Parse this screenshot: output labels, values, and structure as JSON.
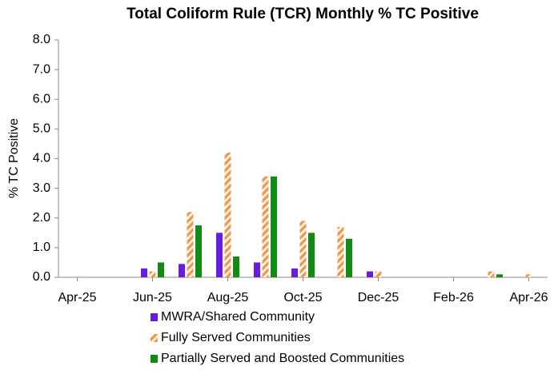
{
  "chart_data": {
    "type": "bar",
    "title": "Total Coliform Rule (TCR) Monthly % TC Positive",
    "y_label": "% TC Positive",
    "categories": [
      "Apr-25",
      null,
      "Jun-25",
      null,
      "Aug-25",
      null,
      "Oct-25",
      null,
      "Dec-25",
      null,
      "Feb-26",
      null,
      "Apr-26"
    ],
    "series": [
      {
        "name": "MWRA/Shared Community",
        "color": "#6a1be0",
        "pattern": "solid",
        "values": [
          null,
          null,
          0.3,
          0.45,
          1.5,
          0.5,
          0.3,
          null,
          0.2,
          null,
          null,
          null,
          null
        ]
      },
      {
        "name": "Fully Served Communities",
        "color": "#f79646",
        "pattern": "hatched",
        "values": [
          null,
          null,
          0.2,
          2.2,
          4.2,
          3.4,
          1.9,
          1.7,
          0.2,
          null,
          null,
          0.2,
          0.1
        ]
      },
      {
        "name": "Partially Served and Boosted Communities",
        "color": "#138a13",
        "pattern": "solid",
        "values": [
          null,
          null,
          0.5,
          1.75,
          0.7,
          3.4,
          1.5,
          1.3,
          null,
          null,
          null,
          0.1,
          null
        ]
      }
    ],
    "ylim": [
      0,
      8
    ],
    "yticks": [
      {
        "value": 0,
        "label": "0.0"
      },
      {
        "value": 1,
        "label": "1.0"
      },
      {
        "value": 2,
        "label": "2.0"
      },
      {
        "value": 3,
        "label": "3.0"
      },
      {
        "value": 4,
        "label": "4.0"
      },
      {
        "value": 5,
        "label": "5.0"
      },
      {
        "value": 6,
        "label": "6.0"
      },
      {
        "value": 7,
        "label": "7.0"
      },
      {
        "value": 8,
        "label": "8.0"
      }
    ],
    "grid": false,
    "legend": "bottom"
  }
}
